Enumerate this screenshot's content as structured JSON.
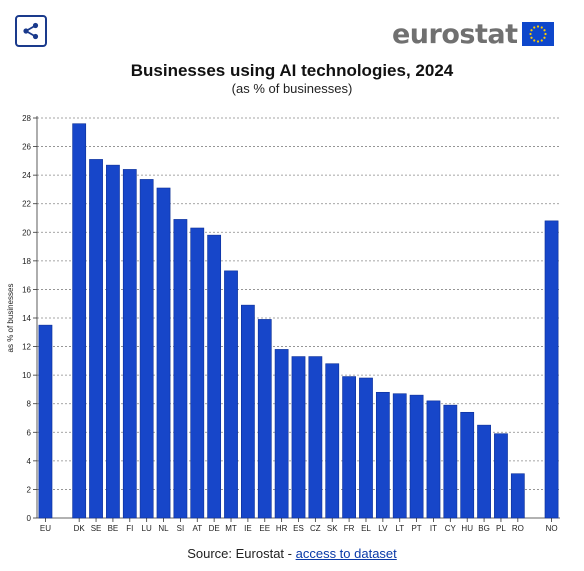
{
  "header": {
    "share_icon": "share-icon",
    "logo_text": "eurostat",
    "logo_icon": "eu-flag-icon"
  },
  "colors": {
    "bar": "#1746c9",
    "bar_stroke": "#0c2f96",
    "grid": "#888888",
    "logo_flag": "#0e47cb",
    "link": "#0a3aa8"
  },
  "chart_data": {
    "type": "bar",
    "title": "Businesses using AI technologies, 2024",
    "subtitle": "(as % of businesses)",
    "ylabel": "as % of businesses",
    "xlabel": "",
    "ylim": [
      0,
      28
    ],
    "yticks": [
      0,
      2,
      4,
      6,
      8,
      10,
      12,
      14,
      16,
      18,
      20,
      22,
      24,
      26,
      28
    ],
    "grid": "horizontal dotted",
    "categories": [
      "EU",
      "DK",
      "SE",
      "BE",
      "FI",
      "LU",
      "NL",
      "SI",
      "AT",
      "DE",
      "MT",
      "IE",
      "EE",
      "HR",
      "ES",
      "CZ",
      "SK",
      "FR",
      "EL",
      "LV",
      "LT",
      "PT",
      "IT",
      "CY",
      "HU",
      "BG",
      "PL",
      "RO",
      "NO"
    ],
    "values": [
      13.5,
      27.6,
      25.1,
      24.7,
      24.4,
      23.7,
      23.1,
      20.9,
      20.3,
      19.8,
      17.3,
      14.9,
      13.9,
      11.8,
      11.3,
      11.3,
      10.8,
      9.9,
      9.8,
      8.8,
      8.7,
      8.6,
      8.2,
      7.9,
      7.4,
      6.5,
      5.9,
      3.1,
      20.8
    ]
  },
  "footer": {
    "source_prefix": "Source: Eurostat - ",
    "source_link": "access to dataset"
  }
}
